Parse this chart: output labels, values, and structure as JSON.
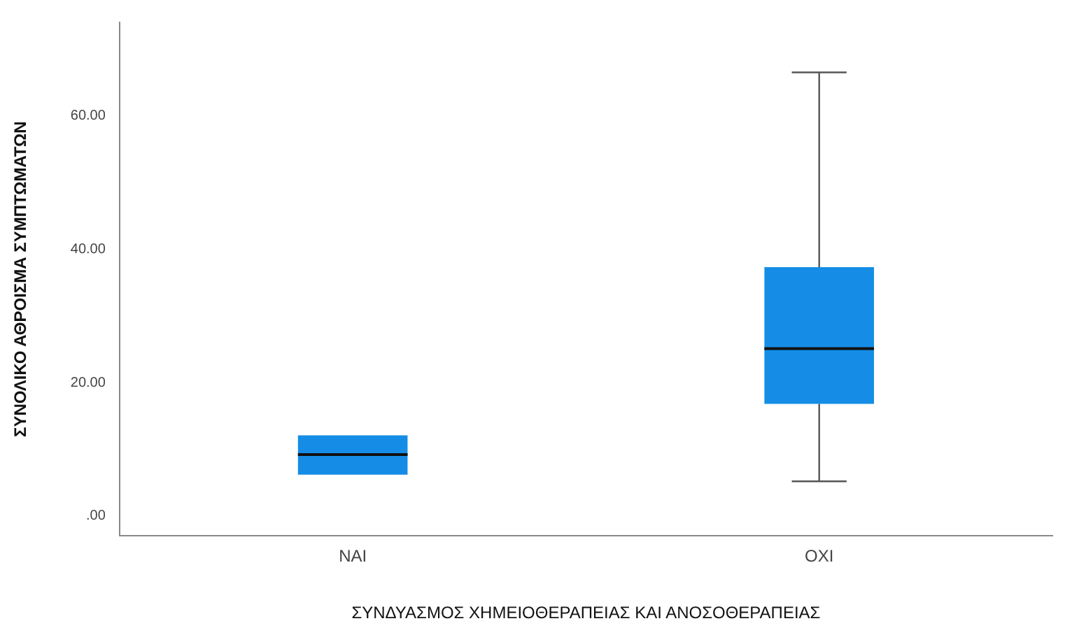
{
  "chart_data": {
    "type": "box",
    "xlabel": "ΣΥΝΔΥΑΣΜΟΣ ΧΗΜΕΙΟΘΕΡΑΠΕΙΑΣ ΚΑΙ ΑΝΟΣΟΘΕΡΑΠΕΙΑΣ",
    "ylabel": "ΣΥΝΟΛΙΚΟ ΑΘΡΟΙΣΜΑ ΣΥΜΠΤΩΜΑΤΩΝ",
    "categories": [
      "ΝΑΙ",
      "ΟΧΙ"
    ],
    "series": [
      {
        "color": "#158de6",
        "boxes": [
          {
            "low": 6.2,
            "q1": 6.2,
            "median": 9.2,
            "q3": 12.1,
            "high": 12.1
          },
          {
            "low": 5.2,
            "q1": 16.8,
            "median": 25.1,
            "q3": 37.3,
            "high": 66.5
          }
        ]
      }
    ],
    "ylim": [
      -3,
      74
    ],
    "yticks": [
      {
        "value": 0,
        "label": ".00"
      },
      {
        "value": 20,
        "label": "20.00"
      },
      {
        "value": 40,
        "label": "40.00"
      },
      {
        "value": 60,
        "label": "60.00"
      }
    ],
    "grid": false,
    "legend": false
  }
}
